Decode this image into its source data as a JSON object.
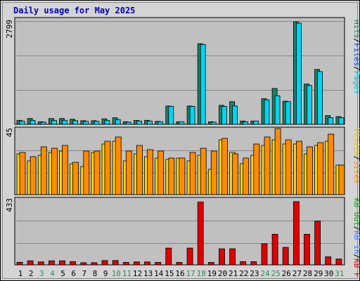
{
  "chart_data": [
    {
      "type": "bar",
      "title": "Daily usage for May 2025",
      "categories": [
        "1",
        "2",
        "3",
        "4",
        "5",
        "6",
        "7",
        "8",
        "9",
        "10",
        "11",
        "12",
        "13",
        "14",
        "15",
        "16",
        "17",
        "18",
        "19",
        "20",
        "21",
        "22",
        "23",
        "24",
        "25",
        "26",
        "27",
        "28",
        "29",
        "30",
        "31"
      ],
      "weekend_days": [
        "3",
        "4",
        "10",
        "11",
        "17",
        "18",
        "24",
        "25",
        "31"
      ],
      "ymax_label": "2799",
      "ylim": [
        0,
        2799
      ],
      "grid": true,
      "series": [
        {
          "name": "Hits",
          "color": "#1e7f65",
          "values": [
            110,
            160,
            70,
            160,
            160,
            140,
            100,
            100,
            150,
            180,
            70,
            110,
            110,
            80,
            500,
            70,
            500,
            2200,
            70,
            520,
            620,
            90,
            90,
            700,
            980,
            630,
            2799,
            1100,
            1500,
            240,
            210
          ]
        },
        {
          "name": "Files",
          "color": "#00d4f0",
          "values": [
            90,
            110,
            60,
            110,
            110,
            100,
            80,
            80,
            110,
            130,
            60,
            90,
            90,
            70,
            490,
            70,
            490,
            2180,
            60,
            490,
            500,
            70,
            90,
            670,
            780,
            620,
            2760,
            1060,
            1440,
            180,
            180
          ]
        }
      ],
      "right_labels": [
        {
          "text": "Pages",
          "color": "#00c8d8"
        },
        {
          "text": "Files",
          "color": "#0040c0"
        },
        {
          "text": "Hits",
          "color": "#1e7f65"
        }
      ]
    },
    {
      "type": "bar",
      "categories": [
        "1",
        "2",
        "3",
        "4",
        "5",
        "6",
        "7",
        "8",
        "9",
        "10",
        "11",
        "12",
        "13",
        "14",
        "15",
        "16",
        "17",
        "18",
        "19",
        "20",
        "21",
        "22",
        "23",
        "24",
        "25",
        "26",
        "27",
        "28",
        "29",
        "30",
        "31"
      ],
      "ymax_label": "45",
      "ylim": [
        0,
        45
      ],
      "grid": true,
      "series": [
        {
          "name": "Visits",
          "color": "#ffd400",
          "values": [
            29,
            24,
            28,
            30,
            31,
            22,
            20,
            30,
            36,
            38,
            24,
            29,
            27,
            26,
            25,
            26,
            24,
            28,
            18,
            39,
            30,
            22,
            28,
            35,
            39,
            36,
            36,
            29,
            35,
            38,
            21
          ]
        },
        {
          "name": "Sites",
          "color": "#ff8c00",
          "values": [
            30,
            27,
            34,
            33,
            35,
            23,
            31,
            31,
            38,
            41,
            31,
            35,
            32,
            31,
            26,
            26,
            30,
            33,
            31,
            40,
            29,
            26,
            36,
            41,
            47,
            39,
            38,
            34,
            37,
            43,
            21
          ]
        }
      ],
      "right_labels": [
        {
          "text": "Visits",
          "color": "#e8c800"
        },
        {
          "text": "Sites",
          "color": "#ff8c00"
        }
      ]
    },
    {
      "type": "bar",
      "categories": [
        "1",
        "2",
        "3",
        "4",
        "5",
        "6",
        "7",
        "8",
        "9",
        "10",
        "11",
        "12",
        "13",
        "14",
        "15",
        "16",
        "17",
        "18",
        "19",
        "20",
        "21",
        "22",
        "23",
        "24",
        "25",
        "26",
        "27",
        "28",
        "29",
        "30",
        "31"
      ],
      "ymax_label": "433",
      "ylim": [
        0,
        433
      ],
      "grid": true,
      "series": [
        {
          "name": "KB F",
          "color": "#e00000",
          "values": [
            18,
            28,
            20,
            28,
            28,
            22,
            15,
            15,
            30,
            30,
            17,
            20,
            20,
            17,
            115,
            17,
            115,
            430,
            17,
            110,
            110,
            22,
            22,
            145,
            210,
            120,
            433,
            210,
            300,
            55,
            40
          ]
        }
      ],
      "right_labels": [
        {
          "text": "KB F",
          "color": "#e00000"
        },
        {
          "text": "KB In",
          "color": "#4080ff"
        },
        {
          "text": "KB Out",
          "color": "#00a000"
        }
      ]
    }
  ]
}
